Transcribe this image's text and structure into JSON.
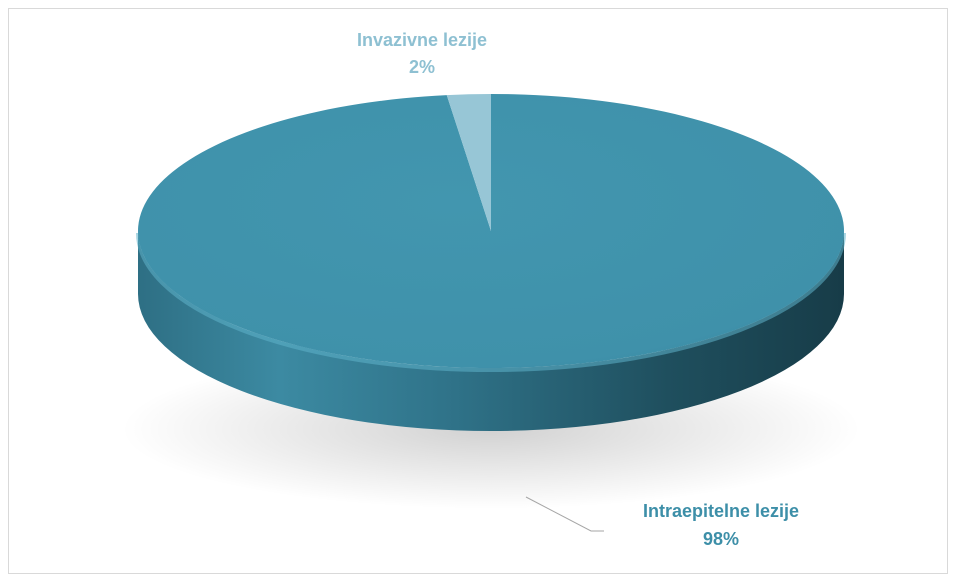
{
  "colors": {
    "background": "#ffffff",
    "frame_border": "#d9d9d9",
    "leader_line": "#a6a6a6"
  },
  "chart_data": {
    "type": "pie",
    "style": "3d",
    "title": "",
    "legend": "none",
    "slices": [
      {
        "name": "Intraepitelne lezije",
        "value": 98,
        "label": "98%",
        "color": "#4093ac",
        "label_color": "#3d8fa8"
      },
      {
        "name": "Invazivne lezije",
        "value": 2,
        "label": "2%",
        "color": "#97c6d6",
        "label_color": "#8ec0d2"
      }
    ]
  }
}
